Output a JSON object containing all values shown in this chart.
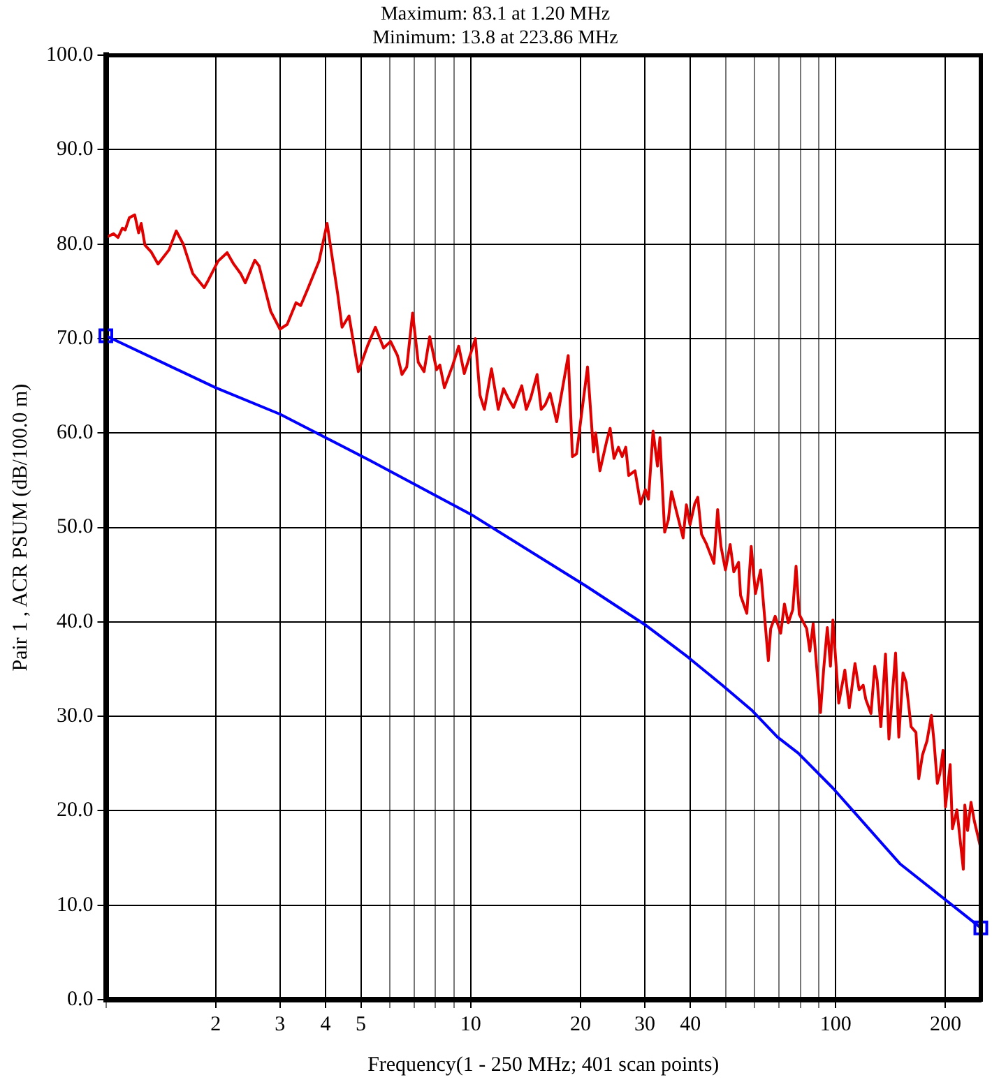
{
  "chart_data": {
    "type": "line",
    "title": "Maximum: 83.1 at 1.20 MHz",
    "subtitle": "Minimum: 13.8 at 223.86 MHz",
    "xlabel": "Frequency(1 - 250 MHz; 401 scan points)",
    "ylabel": "Pair 1 , ACR PSUM (dB/100.0 m)",
    "log": "x",
    "grid": true,
    "legend": false,
    "xlim": [
      1,
      250
    ],
    "xticks": [
      {
        "value": 1,
        "label": null
      },
      2,
      3,
      4,
      5,
      {
        "value": 6,
        "label": null
      },
      {
        "value": 7,
        "label": null
      },
      {
        "value": 8,
        "label": null
      },
      {
        "value": 9,
        "label": null
      },
      10,
      20,
      30,
      40,
      {
        "value": 50,
        "label": null
      },
      {
        "value": 60,
        "label": null
      },
      {
        "value": 70,
        "label": null
      },
      {
        "value": 80,
        "label": null
      },
      {
        "value": 90,
        "label": null
      },
      100,
      200
    ],
    "ylim": [
      0,
      100
    ],
    "yticks": [
      {
        "value": 0,
        "label": "0.0"
      },
      {
        "value": 10,
        "label": "10.0"
      },
      {
        "value": 20,
        "label": "20.0"
      },
      {
        "value": 30,
        "label": "30.0"
      },
      {
        "value": 40,
        "label": "40.0"
      },
      {
        "value": 50,
        "label": "50.0"
      },
      {
        "value": 60,
        "label": "60.0"
      },
      {
        "value": 70,
        "label": "70.0"
      },
      {
        "value": 80,
        "label": "80.0"
      },
      {
        "value": 90,
        "label": "90.0"
      },
      {
        "value": 100,
        "label": "100.0"
      }
    ],
    "series": [
      {
        "color": "#e00000",
        "marker": "none",
        "line_style": "solid",
        "x": [
          1.0,
          1.05,
          1.08,
          1.11,
          1.13,
          1.16,
          1.2,
          1.23,
          1.25,
          1.28,
          1.33,
          1.39,
          1.49,
          1.56,
          1.63,
          1.73,
          1.86,
          1.91,
          2.03,
          2.15,
          2.24,
          2.34,
          2.41,
          2.56,
          2.63,
          2.83,
          3.0,
          3.14,
          3.32,
          3.42,
          3.57,
          3.84,
          4.04,
          4.32,
          4.44,
          4.64,
          4.92,
          5.21,
          5.48,
          5.77,
          6.03,
          6.3,
          6.48,
          6.68,
          6.93,
          7.18,
          7.45,
          7.72,
          8.06,
          8.23,
          8.47,
          8.93,
          9.27,
          9.6,
          10.3,
          10.6,
          10.9,
          11.4,
          11.9,
          12.3,
          12.7,
          13.1,
          13.8,
          14.2,
          14.6,
          15.2,
          15.6,
          16.0,
          16.5,
          17.2,
          18.5,
          19.0,
          19.5,
          20.2,
          20.9,
          21.7,
          22.0,
          22.6,
          23.6,
          24.1,
          24.7,
          25.4,
          26.0,
          26.6,
          27.1,
          28.2,
          29.2,
          30.1,
          30.7,
          31.6,
          32.5,
          33.0,
          34.0,
          34.8,
          35.5,
          38.2,
          39.0,
          39.9,
          41.1,
          41.9,
          42.9,
          44.2,
          46.4,
          47.5,
          48.5,
          49.9,
          51.4,
          52.6,
          54.2,
          54.9,
          57.1,
          58.7,
          60.3,
          62.3,
          65.4,
          66.4,
          68.3,
          70.7,
          72.4,
          74.2,
          76.3,
          77.9,
          79.5,
          83.3,
          85.0,
          86.8,
          88.7,
          90.9,
          92.7,
          94.9,
          96.8,
          98.3,
          102,
          106,
          109,
          113,
          116,
          119,
          121,
          125,
          128,
          130,
          133,
          137,
          140,
          146,
          149,
          153,
          156,
          161,
          166,
          169,
          173,
          178,
          183,
          186,
          190,
          193,
          197,
          200,
          206,
          209,
          215,
          223.86,
          226,
          230,
          235,
          240,
          250
        ],
        "values": [
          80.7,
          81.1,
          80.7,
          81.7,
          81.5,
          82.8,
          83.1,
          81.2,
          82.2,
          79.9,
          79.2,
          77.9,
          79.4,
          81.4,
          80.0,
          76.9,
          75.4,
          76.2,
          78.2,
          79.1,
          77.9,
          76.9,
          75.9,
          78.3,
          77.7,
          72.9,
          71.0,
          71.5,
          73.8,
          73.5,
          75.2,
          78.2,
          82.2,
          74.7,
          71.2,
          72.4,
          66.5,
          69.2,
          71.2,
          69.0,
          69.7,
          68.2,
          66.2,
          67.0,
          72.7,
          67.5,
          66.5,
          70.2,
          66.7,
          67.2,
          64.8,
          67.2,
          69.2,
          66.3,
          70.0,
          64.0,
          62.5,
          66.8,
          62.5,
          64.7,
          63.6,
          62.7,
          65.0,
          62.5,
          63.7,
          66.2,
          62.5,
          63.0,
          64.2,
          61.2,
          68.2,
          57.5,
          57.8,
          62.5,
          67.0,
          58.0,
          60.0,
          56.0,
          59.2,
          60.5,
          57.3,
          58.5,
          57.5,
          58.5,
          55.5,
          56.0,
          52.5,
          54.0,
          53.0,
          60.2,
          56.5,
          59.5,
          49.5,
          50.8,
          53.8,
          48.9,
          52.4,
          50.3,
          52.5,
          53.2,
          49.3,
          48.3,
          46.2,
          51.9,
          48.0,
          45.5,
          48.2,
          45.3,
          46.3,
          42.8,
          40.9,
          48.0,
          43.0,
          45.5,
          35.9,
          39.3,
          40.6,
          38.8,
          41.9,
          39.9,
          41.3,
          45.9,
          40.8,
          39.3,
          36.9,
          39.8,
          35.3,
          30.4,
          34.9,
          39.4,
          35.3,
          40.2,
          31.4,
          34.9,
          30.9,
          35.6,
          32.8,
          33.3,
          31.8,
          30.3,
          35.3,
          33.8,
          28.9,
          36.6,
          27.6,
          36.7,
          27.8,
          34.6,
          33.6,
          28.9,
          28.3,
          23.4,
          25.9,
          27.4,
          30.1,
          27.4,
          22.9,
          23.9,
          26.4,
          20.4,
          24.9,
          18.1,
          20.1,
          13.8,
          20.6,
          17.9,
          20.9,
          18.9,
          16.0
        ]
      },
      {
        "type": "scatter",
        "color": "#0000ff",
        "marker": "square",
        "x": [
          1,
          250
        ],
        "values": [
          70.3,
          7.6
        ]
      },
      {
        "color": "#0000ff",
        "marker": "none",
        "line_style": "solid",
        "x": [
          1,
          2,
          3,
          5.29,
          10,
          20.7,
          30.3,
          39.3,
          48.9,
          59.1,
          69.3,
          79.0,
          98.3,
          114,
          150,
          250
        ],
        "values": [
          70.3,
          64.8,
          62.0,
          57.1,
          51.4,
          43.8,
          39.6,
          36.3,
          33.3,
          30.6,
          27.8,
          26.1,
          22.4,
          19.6,
          14.4,
          7.6
        ]
      }
    ]
  }
}
